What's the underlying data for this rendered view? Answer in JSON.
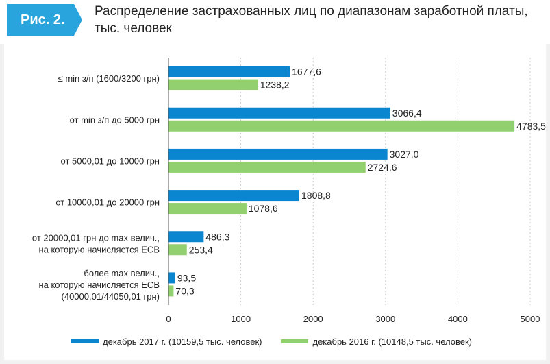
{
  "figure_label": "Рис. 2.",
  "title": "Распределение застрахованных лиц по диапазонам заработной платы, тыс. человек",
  "colors": {
    "accent": "#29a4dd",
    "series_2017": "#0a85d0",
    "series_2016": "#92cf6e"
  },
  "chart_data": {
    "type": "bar",
    "orientation": "horizontal",
    "title": "Распределение застрахованных лиц по диапазонам заработной платы, тыс. человек",
    "categories": [
      [
        "≤ min з/п (1600/3200 грн)"
      ],
      [
        "от min з/п до 5000 грн"
      ],
      [
        "от 5000,01 до 10000 грн"
      ],
      [
        "от 10000,01 до 20000 грн"
      ],
      [
        "от 20000,01 грн до max велич.,",
        "на которую начисляется ЕСВ"
      ],
      [
        "более max велич.,",
        "на которую начисляется ЕСВ",
        "(40000,01/44050,01 грн)"
      ]
    ],
    "series": [
      {
        "name": "декабрь 2017 г. (10159,5 тыс. человек)",
        "color": "#0a85d0",
        "values": [
          1677.6,
          3066.4,
          3027.0,
          1808.8,
          486.3,
          93.5
        ],
        "labels": [
          "1677,6",
          "3066,4",
          "3027,0",
          "1808,8",
          "486,3",
          "93,5"
        ]
      },
      {
        "name": "декабрь 2016 г. (10148,5 тыс. человек)",
        "color": "#92cf6e",
        "values": [
          1238.2,
          4783.5,
          2724.6,
          1078.6,
          253.4,
          70.3
        ],
        "labels": [
          "1238,2",
          "4783,5",
          "2724,6",
          "1078,6",
          "253,4",
          "70,3"
        ]
      }
    ],
    "xlim": [
      0,
      5000
    ],
    "xticks": [
      0,
      1000,
      2000,
      3000,
      4000,
      5000
    ],
    "xtick_labels": [
      "0",
      "1000",
      "2000",
      "3000",
      "4000",
      "5000"
    ],
    "grid": true,
    "legend_position": "bottom"
  }
}
